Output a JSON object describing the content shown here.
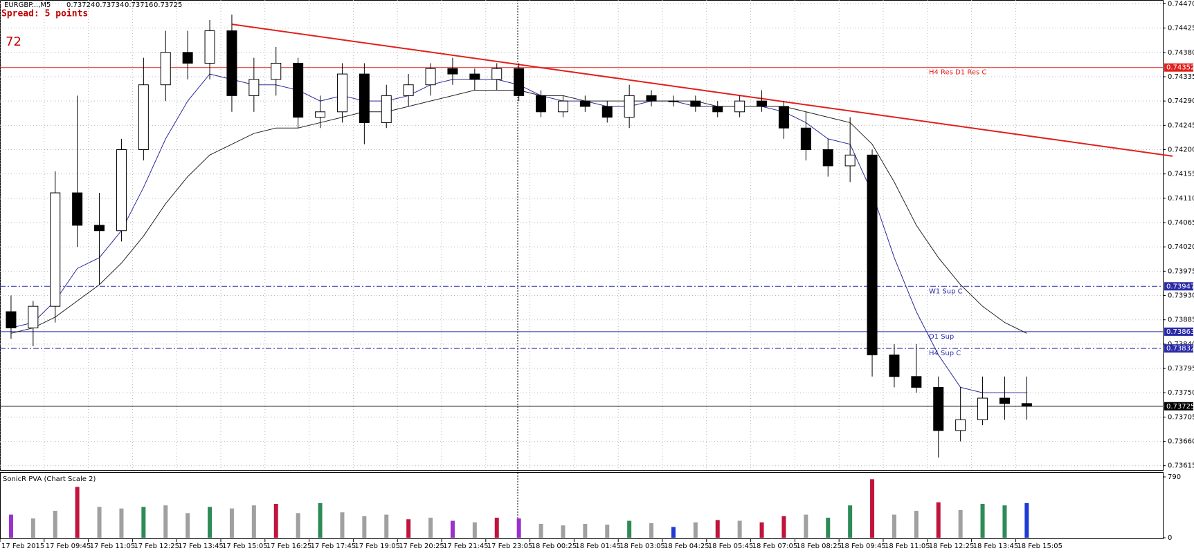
{
  "chart_data": {
    "type": "candlestick",
    "symbol": "EURGBP...,M5",
    "quote": [
      0.73724,
      0.73734,
      0.73716,
      0.73725
    ],
    "spread": "Spread: 5 points",
    "counter": 72,
    "categories": [
      "17 Feb 2015",
      null,
      "17 Feb 09:45",
      null,
      "17 Feb 11:05",
      null,
      "17 Feb 12:25",
      null,
      "17 Feb 13:45",
      null,
      "17 Feb 15:05",
      null,
      "17 Feb 16:25",
      null,
      "17 Feb 17:45",
      null,
      "17 Feb 19:05",
      null,
      "17 Feb 20:25",
      null,
      "17 Feb 21:45",
      null,
      "17 Feb 23:05",
      null,
      "18 Feb 00:25",
      null,
      "18 Feb 01:45",
      null,
      "18 Feb 03:05",
      null,
      "18 Feb 04:25",
      null,
      "18 Feb 05:45",
      null,
      "18 Feb 07:05",
      null,
      "18 Feb 08:25",
      null,
      "18 Feb 09:45",
      null,
      "18 Feb 11:05",
      null,
      "18 Feb 12:25",
      null,
      "18 Feb 13:45",
      null,
      "18 Feb 15:05"
    ],
    "ohlc": [
      [
        0.739,
        0.7393,
        0.7385,
        0.7387
      ],
      [
        0.7387,
        0.7392,
        0.73836,
        0.7391
      ],
      [
        0.7391,
        0.7416,
        0.7388,
        0.7412
      ],
      [
        0.7412,
        0.743,
        0.7402,
        0.7406
      ],
      [
        0.7406,
        0.7412,
        0.7395,
        0.7405
      ],
      [
        0.7405,
        0.7422,
        0.7403,
        0.742
      ],
      [
        0.742,
        0.7437,
        0.7418,
        0.7432
      ],
      [
        0.7432,
        0.7442,
        0.7429,
        0.7438
      ],
      [
        0.7438,
        0.7442,
        0.7433,
        0.7436
      ],
      [
        0.7436,
        0.7444,
        0.7433,
        0.7442
      ],
      [
        0.7442,
        0.7445,
        0.7427,
        0.743
      ],
      [
        0.743,
        0.7437,
        0.7427,
        0.7433
      ],
      [
        0.7433,
        0.7439,
        0.743,
        0.7436
      ],
      [
        0.7436,
        0.7437,
        0.7424,
        0.7426
      ],
      [
        0.7426,
        0.743,
        0.7424,
        0.7427
      ],
      [
        0.7427,
        0.7436,
        0.7425,
        0.7434
      ],
      [
        0.7434,
        0.7436,
        0.7421,
        0.7425
      ],
      [
        0.7425,
        0.7432,
        0.7424,
        0.743
      ],
      [
        0.743,
        0.7434,
        0.7428,
        0.7432
      ],
      [
        0.7432,
        0.7436,
        0.743,
        0.7435
      ],
      [
        0.7435,
        0.7437,
        0.7432,
        0.7434
      ],
      [
        0.7434,
        0.7435,
        0.7431,
        0.7433
      ],
      [
        0.7433,
        0.7436,
        0.7431,
        0.7435
      ],
      [
        0.7435,
        0.7436,
        0.7429,
        0.743
      ],
      [
        0.743,
        0.7431,
        0.7426,
        0.7427
      ],
      [
        0.7427,
        0.743,
        0.7426,
        0.7429
      ],
      [
        0.7429,
        0.743,
        0.7427,
        0.7428
      ],
      [
        0.7428,
        0.7429,
        0.7425,
        0.7426
      ],
      [
        0.7426,
        0.7432,
        0.7424,
        0.743
      ],
      [
        0.743,
        0.7431,
        0.7428,
        0.7429
      ],
      [
        0.7429,
        0.743,
        0.7428,
        0.7429
      ],
      [
        0.7429,
        0.743,
        0.7427,
        0.7428
      ],
      [
        0.7428,
        0.7429,
        0.7426,
        0.7427
      ],
      [
        0.7427,
        0.743,
        0.7426,
        0.7429
      ],
      [
        0.7429,
        0.7431,
        0.7427,
        0.7428
      ],
      [
        0.7428,
        0.7429,
        0.7422,
        0.7424
      ],
      [
        0.7424,
        0.7427,
        0.7418,
        0.742
      ],
      [
        0.742,
        0.7422,
        0.7415,
        0.7417
      ],
      [
        0.7417,
        0.7426,
        0.7414,
        0.7419
      ],
      [
        0.7419,
        0.742,
        0.7378,
        0.7382
      ],
      [
        0.7382,
        0.7384,
        0.7376,
        0.7378
      ],
      [
        0.7378,
        0.7384,
        0.7375,
        0.7376
      ],
      [
        0.7376,
        0.7378,
        0.7363,
        0.7368
      ],
      [
        0.7368,
        0.7376,
        0.7366,
        0.737
      ],
      [
        0.737,
        0.7378,
        0.7369,
        0.7374
      ],
      [
        0.7374,
        0.7378,
        0.737,
        0.7373
      ],
      [
        0.7373,
        0.7378,
        0.737,
        0.73725
      ]
    ],
    "series": [
      {
        "color": "#2a2a9a",
        "values": [
          0.7387,
          0.7388,
          0.7392,
          0.7398,
          0.74,
          0.7405,
          0.7413,
          0.7422,
          0.7429,
          0.7434,
          0.7433,
          0.7432,
          0.7432,
          0.7431,
          0.7429,
          0.743,
          0.7429,
          0.7429,
          0.743,
          0.7432,
          0.7433,
          0.7433,
          0.7433,
          0.7432,
          0.743,
          0.7429,
          0.7429,
          0.7428,
          0.7428,
          0.7429,
          0.7429,
          0.7428,
          0.7428,
          0.7428,
          0.7428,
          0.7427,
          0.7425,
          0.7422,
          0.7421,
          0.7412,
          0.74,
          0.739,
          0.7382,
          0.7376,
          0.7375,
          0.7375,
          0.7375
        ]
      },
      {
        "color": "#222222",
        "values": [
          0.7386,
          0.7387,
          0.7389,
          0.7392,
          0.7395,
          0.7399,
          0.7404,
          0.741,
          0.7415,
          0.7419,
          0.7421,
          0.7423,
          0.7424,
          0.7424,
          0.7425,
          0.7426,
          0.7427,
          0.7427,
          0.7428,
          0.7429,
          0.743,
          0.7431,
          0.7431,
          0.7431,
          0.743,
          0.743,
          0.7429,
          0.7429,
          0.7429,
          0.7429,
          0.7429,
          0.7429,
          0.7428,
          0.7428,
          0.7428,
          0.7428,
          0.7427,
          0.7426,
          0.7425,
          0.7421,
          0.7414,
          0.7406,
          0.74,
          0.7395,
          0.7391,
          0.7388,
          0.7386
        ]
      }
    ],
    "trendline": {
      "color": "#e0201c",
      "x": [
        10,
        52.6
      ],
      "values": [
        0.74432,
        0.74188
      ]
    },
    "levels": [
      {
        "value": 0.74352,
        "label": "H4 Res  D1 Res C",
        "color": "#e0201c",
        "style": "solid"
      },
      {
        "value": 0.73947,
        "label": "W1 Sup C",
        "color": "#2a2aa8",
        "style": "dashdot"
      },
      {
        "value": 0.73863,
        "label": "D1 Sup",
        "color": "#2a2aa8",
        "style": "solid"
      },
      {
        "value": 0.73832,
        "label": "H4 Sup C",
        "color": "#2a2aa8",
        "style": "dashdot"
      },
      {
        "value": 0.73725,
        "color": "#000000",
        "style": "solid"
      }
    ],
    "ylim": [
      0.73607,
      0.74477
    ],
    "yticks": [
      {
        "value": 0.7447,
        "label": "0.74470"
      },
      0.74425,
      {
        "value": 0.7438,
        "label": "0.74380"
      },
      0.74335,
      {
        "value": 0.7429,
        "label": "0.74290"
      },
      0.74245,
      {
        "value": 0.742,
        "label": "0.74200"
      },
      0.74155,
      {
        "value": 0.7411,
        "label": "0.74110"
      },
      0.74065,
      {
        "value": 0.7402,
        "label": "0.74020"
      },
      0.73975,
      {
        "value": 0.7393,
        "label": "0.73930"
      },
      0.73885,
      {
        "value": 0.7384,
        "label": "0.73840"
      },
      0.73795,
      {
        "value": 0.7375,
        "label": "0.73750"
      },
      0.73705,
      {
        "value": 0.7366,
        "label": "0.73660"
      },
      0.73615
    ],
    "grid": true,
    "volume": {
      "title": "SonicR PVA  (Chart Scale 2)",
      "ylim": [
        0,
        790
      ],
      "yticks": [
        0,
        790
      ],
      "values": [
        300,
        250,
        350,
        660,
        400,
        380,
        400,
        420,
        320,
        400,
        380,
        420,
        440,
        320,
        450,
        330,
        280,
        300,
        240,
        260,
        220,
        200,
        260,
        250,
        180,
        160,
        180,
        170,
        220,
        190,
        140,
        200,
        230,
        220,
        200,
        280,
        300,
        260,
        420,
        760,
        300,
        350,
        460,
        360,
        440,
        420,
        450
      ],
      "colors": [
        "#9932cc",
        "#a0a0a0",
        "#a0a0a0",
        "#c0143c",
        "#a0a0a0",
        "#a0a0a0",
        "#2e8b57",
        "#a0a0a0",
        "#a0a0a0",
        "#2e8b57",
        "#a0a0a0",
        "#a0a0a0",
        "#c0143c",
        "#a0a0a0",
        "#2e8b57",
        "#a0a0a0",
        "#a0a0a0",
        "#a0a0a0",
        "#c0143c",
        "#a0a0a0",
        "#9932cc",
        "#a0a0a0",
        "#c0143c",
        "#9932cc",
        "#a0a0a0",
        "#a0a0a0",
        "#a0a0a0",
        "#a0a0a0",
        "#2e8b57",
        "#a0a0a0",
        "#1e3cd2",
        "#a0a0a0",
        "#c0143c",
        "#a0a0a0",
        "#c0143c",
        "#c0143c",
        "#a0a0a0",
        "#2e8b57",
        "#2e8b57",
        "#c0143c",
        "#a0a0a0",
        "#a0a0a0",
        "#c0143c",
        "#a0a0a0",
        "#2e8b57",
        "#2e8b57",
        "#1e3cd2"
      ]
    }
  }
}
